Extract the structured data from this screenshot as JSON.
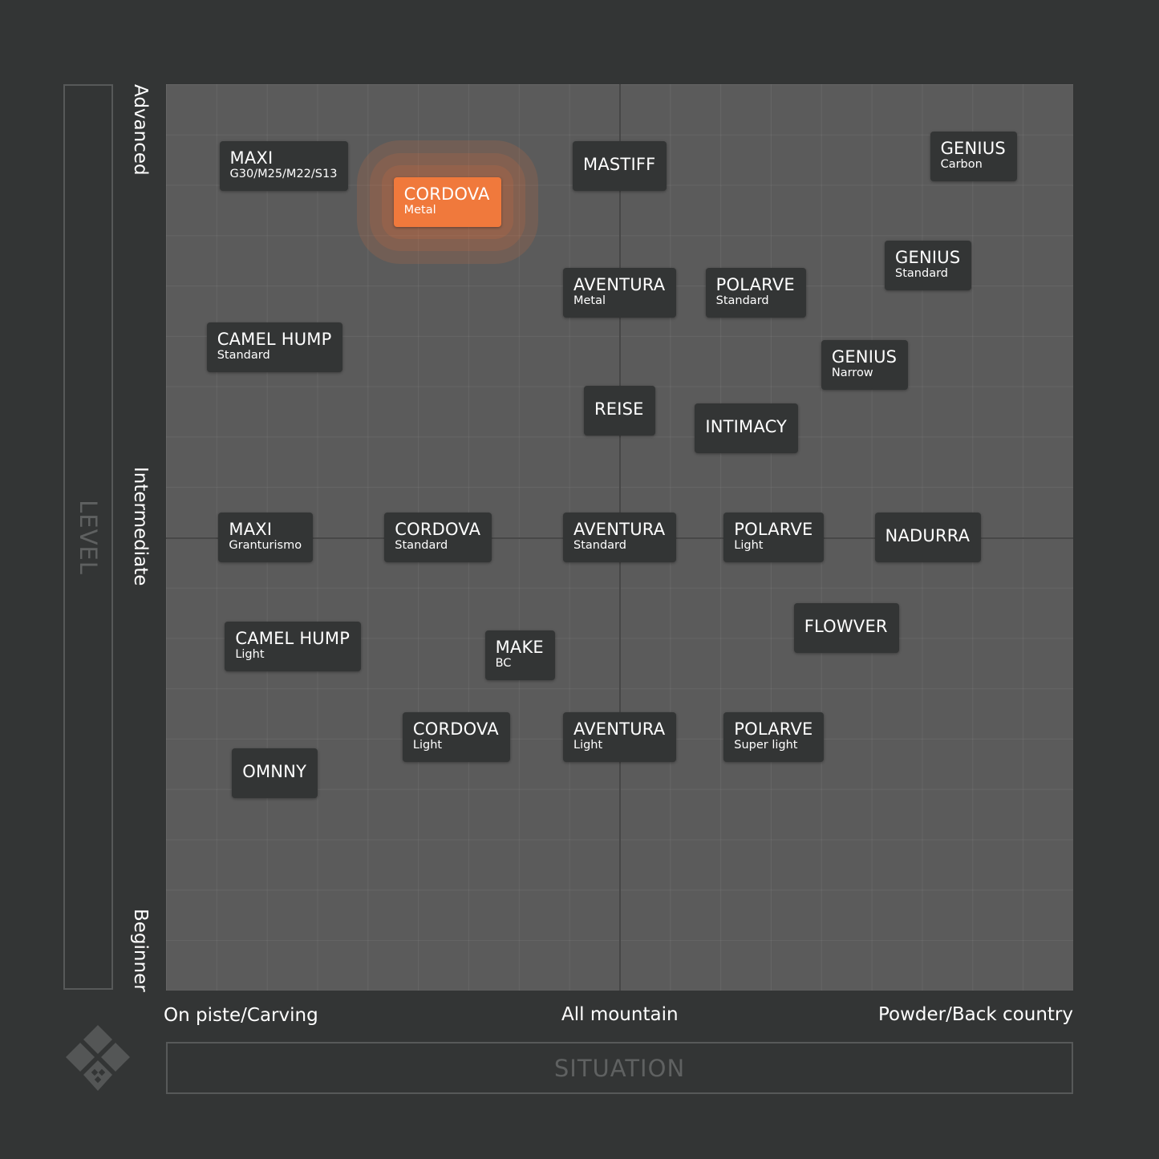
{
  "chart_data": {
    "type": "scatter",
    "xlabel": "SITUATION",
    "ylabel": "LEVEL",
    "x_ticks": [
      "On piste/Carving",
      "All mountain",
      "Powder/Back country"
    ],
    "y_ticks": [
      "Beginner",
      "Intermediate",
      "Advanced"
    ],
    "xlim": [
      0,
      100
    ],
    "ylim": [
      0,
      100
    ],
    "grid": true,
    "points": [
      {
        "name": "MAXI",
        "variant": "G30/M25/M22/S13",
        "x": 13,
        "y": 91
      },
      {
        "name": "CORDOVA",
        "variant": "Metal",
        "x": 31,
        "y": 87,
        "highlight": true
      },
      {
        "name": "MASTIFF",
        "variant": "",
        "x": 50,
        "y": 91
      },
      {
        "name": "GENIUS",
        "variant": "Carbon",
        "x": 89,
        "y": 92
      },
      {
        "name": "GENIUS",
        "variant": "Standard",
        "x": 84,
        "y": 80
      },
      {
        "name": "AVENTURA",
        "variant": "Metal",
        "x": 50,
        "y": 77
      },
      {
        "name": "POLARVE",
        "variant": "Standard",
        "x": 65,
        "y": 77
      },
      {
        "name": "CAMEL HUMP",
        "variant": "Standard",
        "x": 12,
        "y": 71
      },
      {
        "name": "GENIUS",
        "variant": "Narrow",
        "x": 77,
        "y": 69
      },
      {
        "name": "REISE",
        "variant": "",
        "x": 50,
        "y": 64
      },
      {
        "name": "INTIMACY",
        "variant": "",
        "x": 64,
        "y": 62
      },
      {
        "name": "MAXI",
        "variant": "Granturismo",
        "x": 11,
        "y": 50
      },
      {
        "name": "CORDOVA",
        "variant": "Standard",
        "x": 30,
        "y": 50
      },
      {
        "name": "AVENTURA",
        "variant": "Standard",
        "x": 50,
        "y": 50
      },
      {
        "name": "POLARVE",
        "variant": "Light",
        "x": 67,
        "y": 50
      },
      {
        "name": "NADURRA",
        "variant": "",
        "x": 84,
        "y": 50
      },
      {
        "name": "FLOWVER",
        "variant": "",
        "x": 75,
        "y": 40
      },
      {
        "name": "CAMEL HUMP",
        "variant": "Light",
        "x": 14,
        "y": 38
      },
      {
        "name": "MAKE",
        "variant": "BC",
        "x": 39,
        "y": 37
      },
      {
        "name": "CORDOVA",
        "variant": "Light",
        "x": 32,
        "y": 28
      },
      {
        "name": "AVENTURA",
        "variant": "Light",
        "x": 50,
        "y": 28
      },
      {
        "name": "POLARVE",
        "variant": "Super light",
        "x": 67,
        "y": 28
      },
      {
        "name": "OMNNY",
        "variant": "",
        "x": 12,
        "y": 24
      }
    ]
  },
  "colors": {
    "background": "#333535",
    "plot": "#5b5b5b",
    "card": "#333535",
    "highlight": "#f0793c"
  },
  "logo": {
    "icon": "diamond-logo-icon"
  }
}
